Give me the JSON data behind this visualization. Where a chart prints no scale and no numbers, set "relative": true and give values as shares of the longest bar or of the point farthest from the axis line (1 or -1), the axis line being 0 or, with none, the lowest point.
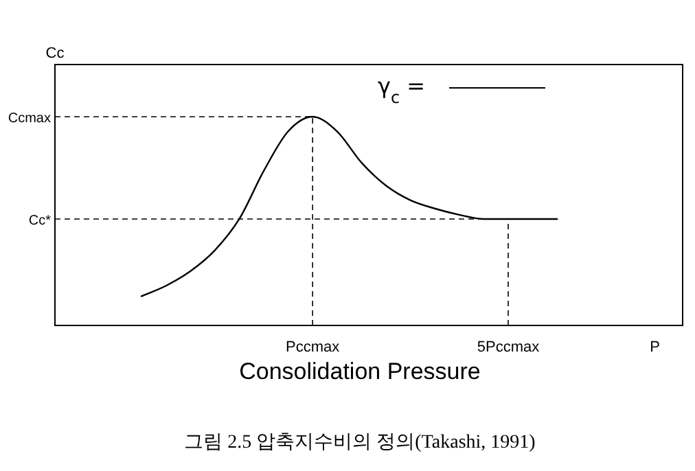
{
  "chart_data": {
    "type": "line",
    "relative": true,
    "xlabel": "Consolidation Pressure",
    "line_style": "solid",
    "marker": "none",
    "grid": false,
    "categories": [
      null,
      null,
      null,
      null,
      null,
      null,
      null,
      "Pccmax",
      null,
      null,
      null,
      null,
      null,
      null,
      null,
      "5Pccmax",
      null,
      null,
      null,
      null,
      null,
      "P",
      null
    ],
    "series": [
      {
        "color": "#000000",
        "values": [
          0.14,
          0.19,
          0.26,
          0.36,
          0.51,
          0.74,
          0.93,
          1.0,
          0.93,
          0.78,
          0.67,
          0.6,
          0.56,
          0.53,
          0.51,
          0.51,
          0.51,
          0.51,
          null,
          null,
          null,
          null,
          null
        ]
      }
    ],
    "ref_lines": [
      {
        "axis": "y",
        "value": 1.0,
        "label": "Ccmax",
        "line_style": "dashed",
        "color": "#000000"
      },
      {
        "axis": "y",
        "value": 0.51,
        "label": "Cc*",
        "line_style": "dashed",
        "color": "#000000"
      },
      {
        "axis": "x",
        "value": "Pccmax",
        "line_style": "dashed",
        "color": "#000000"
      },
      {
        "axis": "x",
        "value": "5Pccmax",
        "line_style": "dashed",
        "color": "#000000"
      }
    ],
    "annotations": [
      "γ$_{c}$ =",
      "Cc",
      "그림 2.5 압축지수비의 정의(Takashi, 1991)"
    ]
  }
}
